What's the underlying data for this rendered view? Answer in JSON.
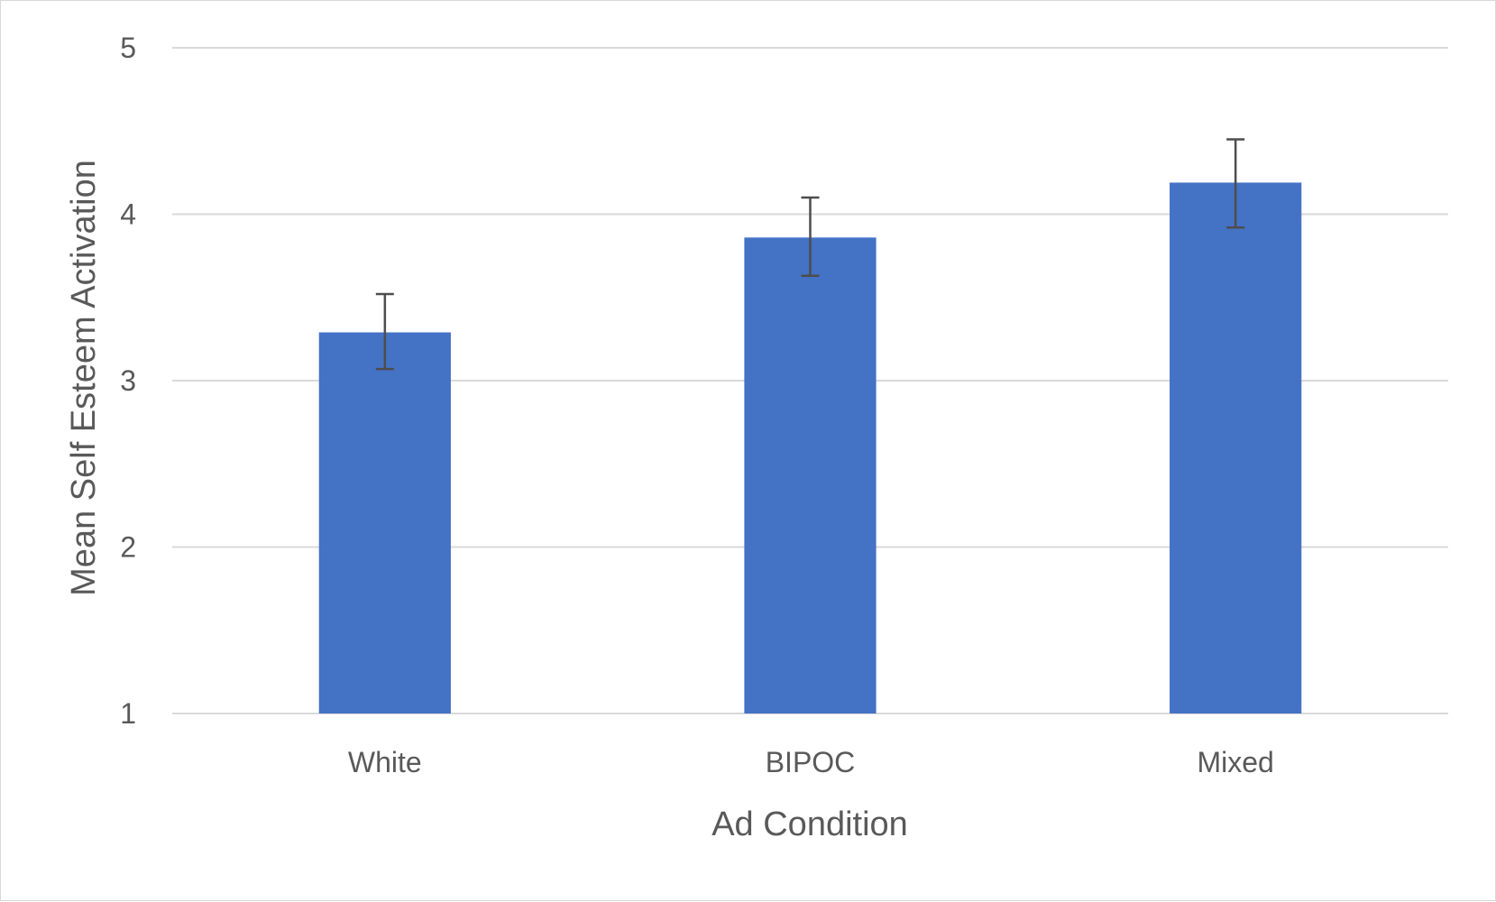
{
  "chart_data": {
    "type": "bar",
    "categories": [
      "White",
      "BIPOC",
      "Mixed"
    ],
    "values": [
      3.29,
      3.86,
      4.19
    ],
    "error_low": [
      3.07,
      3.63,
      3.92
    ],
    "error_high": [
      3.52,
      4.1,
      4.45
    ],
    "xlabel": "Ad Condition",
    "ylabel": "Mean Self Esteem Activation",
    "ylim": [
      1,
      5
    ],
    "yticks": [
      "1",
      "2",
      "3",
      "4",
      "5"
    ],
    "grid": true,
    "bar_color": "#4472c4",
    "error_color": "#4d4d4d",
    "grid_color": "#d9d9d9",
    "text_color": "#595959"
  }
}
